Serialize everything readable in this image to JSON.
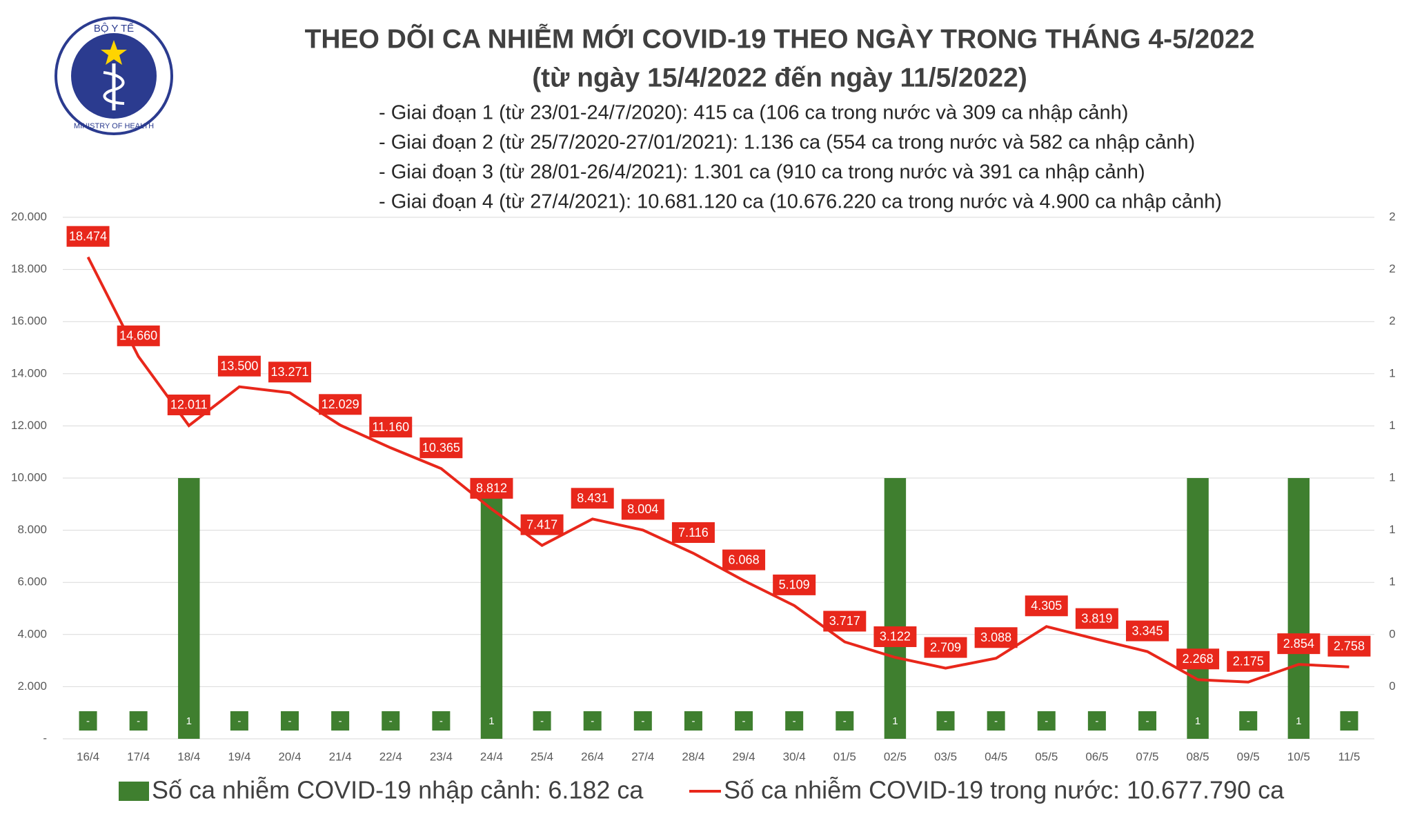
{
  "logo": {
    "top_text": "BỘ Y TẾ",
    "bottom_text": "MINISTRY OF HEALTH"
  },
  "chart_data": {
    "type": "combo",
    "title": "THEO DÕI CA NHIỄM MỚI COVID-19 THEO NGÀY TRONG THÁNG 4-5/2022",
    "subtitle": "(từ ngày 15/4/2022 đến ngày 11/5/2022)",
    "notes": [
      "- Giai đoạn 1 (từ 23/01-24/7/2020): 415 ca (106 ca trong nước và 309 ca nhập cảnh)",
      "- Giai đoạn 2 (từ 25/7/2020-27/01/2021): 1.136 ca (554 ca trong nước và 582 ca nhập cảnh)",
      "- Giai đoạn 3 (từ 28/01-26/4/2021): 1.301 ca (910 ca trong nước và 391 ca nhập cảnh)",
      "- Giai đoạn 4 (từ 27/4/2021): 10.681.120 ca (10.676.220 ca trong nước và 4.900 ca nhập cảnh)"
    ],
    "categories": [
      "16/4",
      "17/4",
      "18/4",
      "19/4",
      "20/4",
      "21/4",
      "22/4",
      "23/4",
      "24/4",
      "25/4",
      "26/4",
      "27/4",
      "28/4",
      "29/4",
      "30/4",
      "01/5",
      "02/5",
      "03/5",
      "04/5",
      "05/5",
      "06/5",
      "07/5",
      "08/5",
      "09/5",
      "10/5",
      "11/5"
    ],
    "series": [
      {
        "name": "Số ca nhiễm COVID-19 nhập cảnh: 6.182 ca",
        "type": "bar",
        "axis": "y2",
        "color": "#3f7f2f",
        "values": [
          0,
          0,
          1,
          0,
          0,
          0,
          0,
          0,
          1,
          0,
          0,
          0,
          0,
          0,
          0,
          0,
          1,
          0,
          0,
          0,
          0,
          0,
          1,
          0,
          1,
          0
        ],
        "value_labels": [
          "-",
          "-",
          "1",
          "-",
          "-",
          "-",
          "-",
          "-",
          "1",
          "-",
          "-",
          "-",
          "-",
          "-",
          "-",
          "-",
          "1",
          "-",
          "-",
          "-",
          "-",
          "-",
          "1",
          "-",
          "1",
          "-"
        ]
      },
      {
        "name": "Số ca nhiễm COVID-19 trong nước: 10.677.790 ca",
        "type": "line",
        "color": "#e8271b",
        "values": [
          18474,
          14660,
          12011,
          13500,
          13271,
          12029,
          11160,
          10365,
          8812,
          7417,
          8431,
          8004,
          7116,
          6068,
          5109,
          3717,
          3122,
          2709,
          3088,
          4305,
          3819,
          3345,
          2268,
          2175,
          2854,
          2758
        ],
        "value_labels": [
          "18.474",
          "14.660",
          "12.011",
          "13.500",
          "13.271",
          "12.029",
          "11.160",
          "10.365",
          "8.812",
          "7.417",
          "8.431",
          "8.004",
          "7.116",
          "6.068",
          "5.109",
          "3.717",
          "3.122",
          "2.709",
          "3.088",
          "4.305",
          "3.819",
          "3.345",
          "2.268",
          "2.175",
          "2.854",
          "2.758"
        ]
      }
    ],
    "ylim": [
      0,
      20000
    ],
    "yticks": [
      {
        "value": 0,
        "label": "-"
      },
      {
        "value": 2000,
        "label": "2.000"
      },
      {
        "value": 4000,
        "label": "4.000"
      },
      {
        "value": 6000,
        "label": "6.000"
      },
      {
        "value": 8000,
        "label": "8.000"
      },
      {
        "value": 10000,
        "label": "10.000"
      },
      {
        "value": 12000,
        "label": "12.000"
      },
      {
        "value": 14000,
        "label": "14.000"
      },
      {
        "value": 16000,
        "label": "16.000"
      },
      {
        "value": 18000,
        "label": "18.000"
      },
      {
        "value": 20000,
        "label": "20.000"
      }
    ],
    "y2lim": [
      0,
      2
    ],
    "y2ticks": [
      {
        "value": 0.2,
        "label": "0"
      },
      {
        "value": 0.4,
        "label": "0"
      },
      {
        "value": 0.6,
        "label": "1"
      },
      {
        "value": 0.8,
        "label": "1"
      },
      {
        "value": 1,
        "label": "1"
      },
      {
        "value": 1.2,
        "label": "1"
      },
      {
        "value": 1.4,
        "label": "1"
      },
      {
        "value": 1.6,
        "label": "2"
      },
      {
        "value": 1.8,
        "label": "2"
      },
      {
        "value": 2,
        "label": "2"
      }
    ],
    "grid": true
  }
}
